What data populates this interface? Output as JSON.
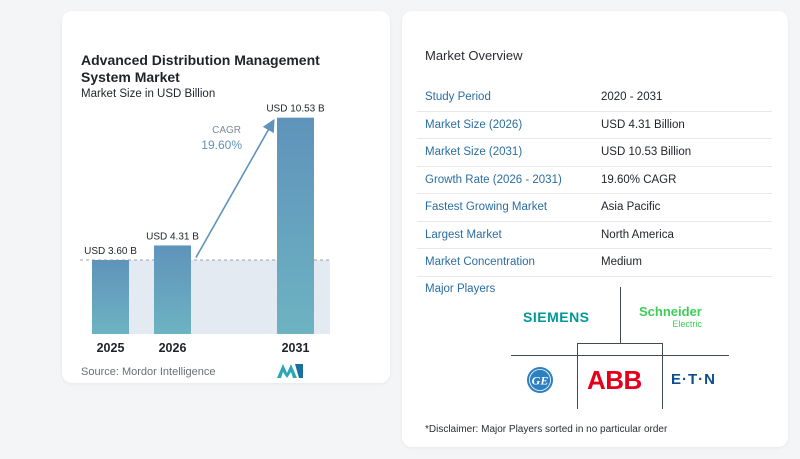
{
  "chart": {
    "title": "Advanced Distribution Management System Market",
    "subtitle": "Market Size in USD Billion",
    "source": "Source:  Mordor Intelligence",
    "cagr_label": "CAGR",
    "cagr_value": "19.60%"
  },
  "chart_data": {
    "type": "bar",
    "title": "Advanced Distribution Management System Market",
    "subtitle": "Market Size in USD Billion",
    "categories": [
      "2025",
      "2026",
      "2031"
    ],
    "values": [
      3.6,
      4.31,
      10.53
    ],
    "data_labels": [
      "USD 3.60 B",
      "USD 4.31 B",
      "USD 10.53 B"
    ],
    "ylim": [
      0,
      11
    ],
    "annotation": "CAGR 19.60%",
    "bar_colors": [
      "#5f93ba",
      "#5f93ba",
      "#5f93ba"
    ]
  },
  "overview": {
    "title": "Market Overview",
    "rows": [
      {
        "key": "Study Period",
        "value": "2020 - 2031"
      },
      {
        "key": "Market Size (2026)",
        "value": "USD 4.31 Billion"
      },
      {
        "key": "Market Size (2031)",
        "value": "USD 10.53 Billion"
      },
      {
        "key": "Growth Rate (2026 - 2031)",
        "value": "19.60% CAGR"
      },
      {
        "key": "Fastest Growing Market",
        "value": "Asia Pacific"
      },
      {
        "key": "Largest Market",
        "value": "North America"
      },
      {
        "key": "Market Concentration",
        "value": "Medium"
      }
    ]
  },
  "players": {
    "title": "Major Players",
    "logos": [
      {
        "name": "siemens-logo",
        "text": "SIEMENS",
        "color": "#009999"
      },
      {
        "name": "schneider-logo",
        "text": "Schneider",
        "sub": "Electric",
        "color": "#3dcd58"
      },
      {
        "name": "ge-logo",
        "text": "GE",
        "color": "#2d7fc0"
      },
      {
        "name": "abb-logo",
        "text": "ABB",
        "color": "#e4001b"
      },
      {
        "name": "eaton-logo",
        "text": "E·T·N",
        "color": "#0b4e8f"
      }
    ]
  },
  "disclaimer": "*Disclaimer: Major Players sorted in no particular order",
  "colors": {
    "accent": "#2b6da0",
    "bar": "#5f93ba",
    "band": "#e3eaf1",
    "cagr": "#5f93ba"
  }
}
